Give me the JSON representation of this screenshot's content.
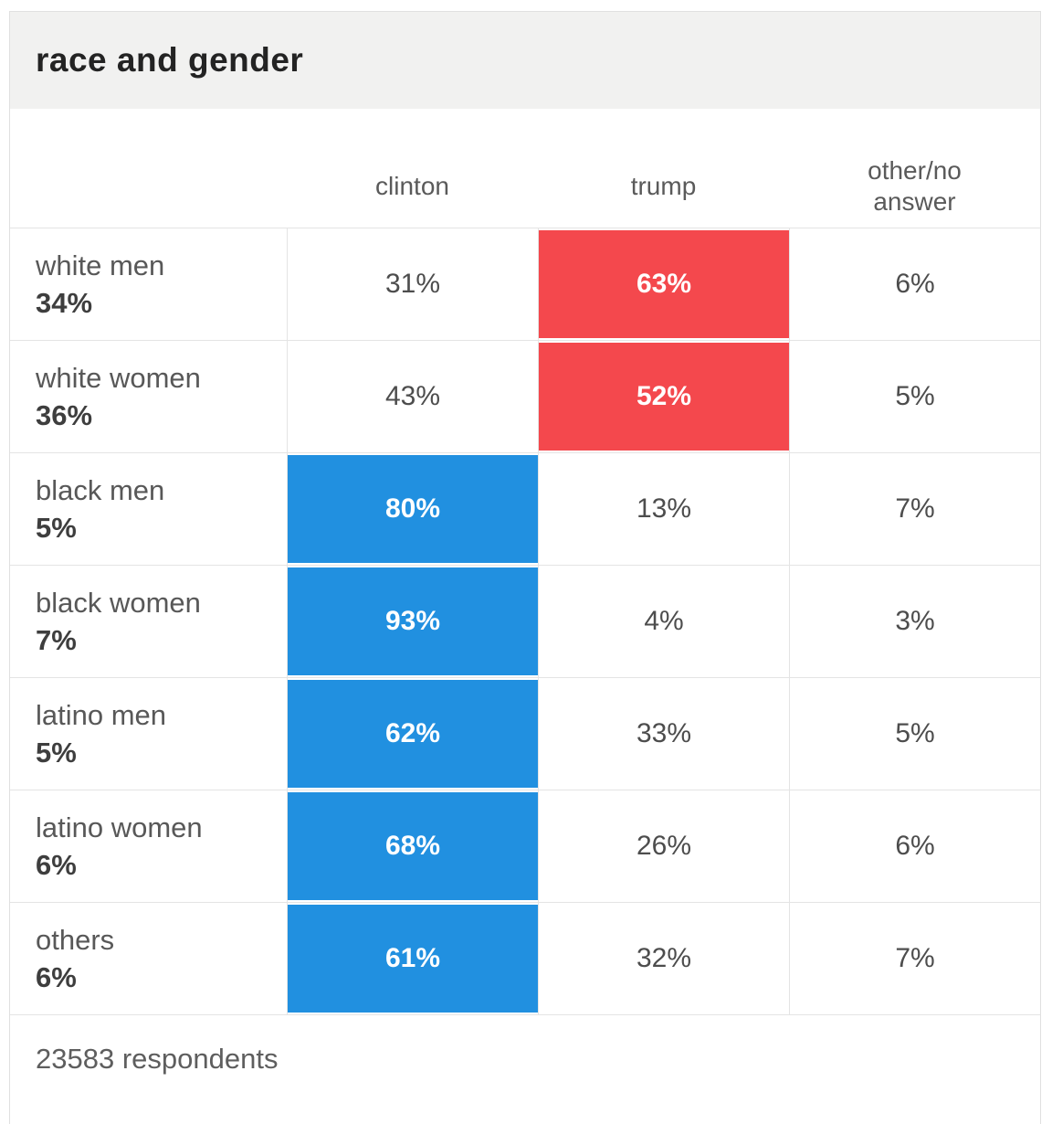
{
  "card": {
    "title": "race and gender",
    "columns": [
      "clinton",
      "trump",
      "other/no answer"
    ],
    "rows": [
      {
        "label": "white men",
        "share": "34%",
        "clinton": "31%",
        "trump": "63%",
        "other": "6%",
        "highlight": "trump"
      },
      {
        "label": "white women",
        "share": "36%",
        "clinton": "43%",
        "trump": "52%",
        "other": "5%",
        "highlight": "trump"
      },
      {
        "label": "black men",
        "share": "5%",
        "clinton": "80%",
        "trump": "13%",
        "other": "7%",
        "highlight": "clinton"
      },
      {
        "label": "black women",
        "share": "7%",
        "clinton": "93%",
        "trump": "4%",
        "other": "3%",
        "highlight": "clinton"
      },
      {
        "label": "latino men",
        "share": "5%",
        "clinton": "62%",
        "trump": "33%",
        "other": "5%",
        "highlight": "clinton"
      },
      {
        "label": "latino women",
        "share": "6%",
        "clinton": "68%",
        "trump": "26%",
        "other": "6%",
        "highlight": "clinton"
      },
      {
        "label": "others",
        "share": "6%",
        "clinton": "61%",
        "trump": "32%",
        "other": "7%",
        "highlight": "clinton"
      }
    ],
    "footer": "23583 respondents"
  },
  "colors": {
    "clinton_highlight": "#2190E0",
    "trump_highlight": "#F4484D",
    "header_strip": "#F1F1F0",
    "border": "#E4E4E4"
  },
  "chart_data": {
    "type": "table",
    "title": "race and gender",
    "columns": [
      "clinton",
      "trump",
      "other/no answer"
    ],
    "categories": [
      "white men",
      "white women",
      "black men",
      "black women",
      "latino men",
      "latino women",
      "others"
    ],
    "group_share_pct": [
      34,
      36,
      5,
      7,
      5,
      6,
      6
    ],
    "series": [
      {
        "name": "clinton",
        "values": [
          31,
          43,
          80,
          93,
          62,
          68,
          61
        ]
      },
      {
        "name": "trump",
        "values": [
          63,
          52,
          13,
          4,
          33,
          26,
          32
        ]
      },
      {
        "name": "other/no answer",
        "values": [
          6,
          5,
          7,
          3,
          5,
          6,
          7
        ]
      }
    ],
    "highlighted_winner_per_row": [
      "trump",
      "trump",
      "clinton",
      "clinton",
      "clinton",
      "clinton",
      "clinton"
    ],
    "highlight_colors": {
      "clinton": "#2190E0",
      "trump": "#F4484D"
    },
    "note": "23583 respondents"
  }
}
